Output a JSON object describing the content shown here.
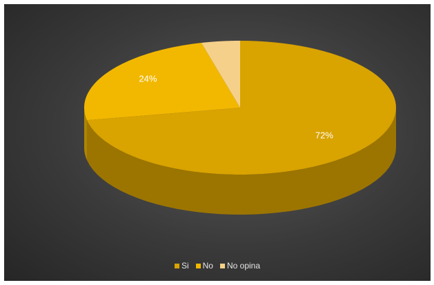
{
  "chart_data": {
    "type": "pie",
    "style": "3d",
    "categories": [
      "Si",
      "No",
      "No opina"
    ],
    "values": [
      72,
      24,
      4
    ],
    "data_labels": [
      "72%",
      "24%",
      ""
    ],
    "colors": [
      "#d9a300",
      "#f2b800",
      "#f5d08a"
    ],
    "legend_position": "bottom",
    "title": ""
  }
}
